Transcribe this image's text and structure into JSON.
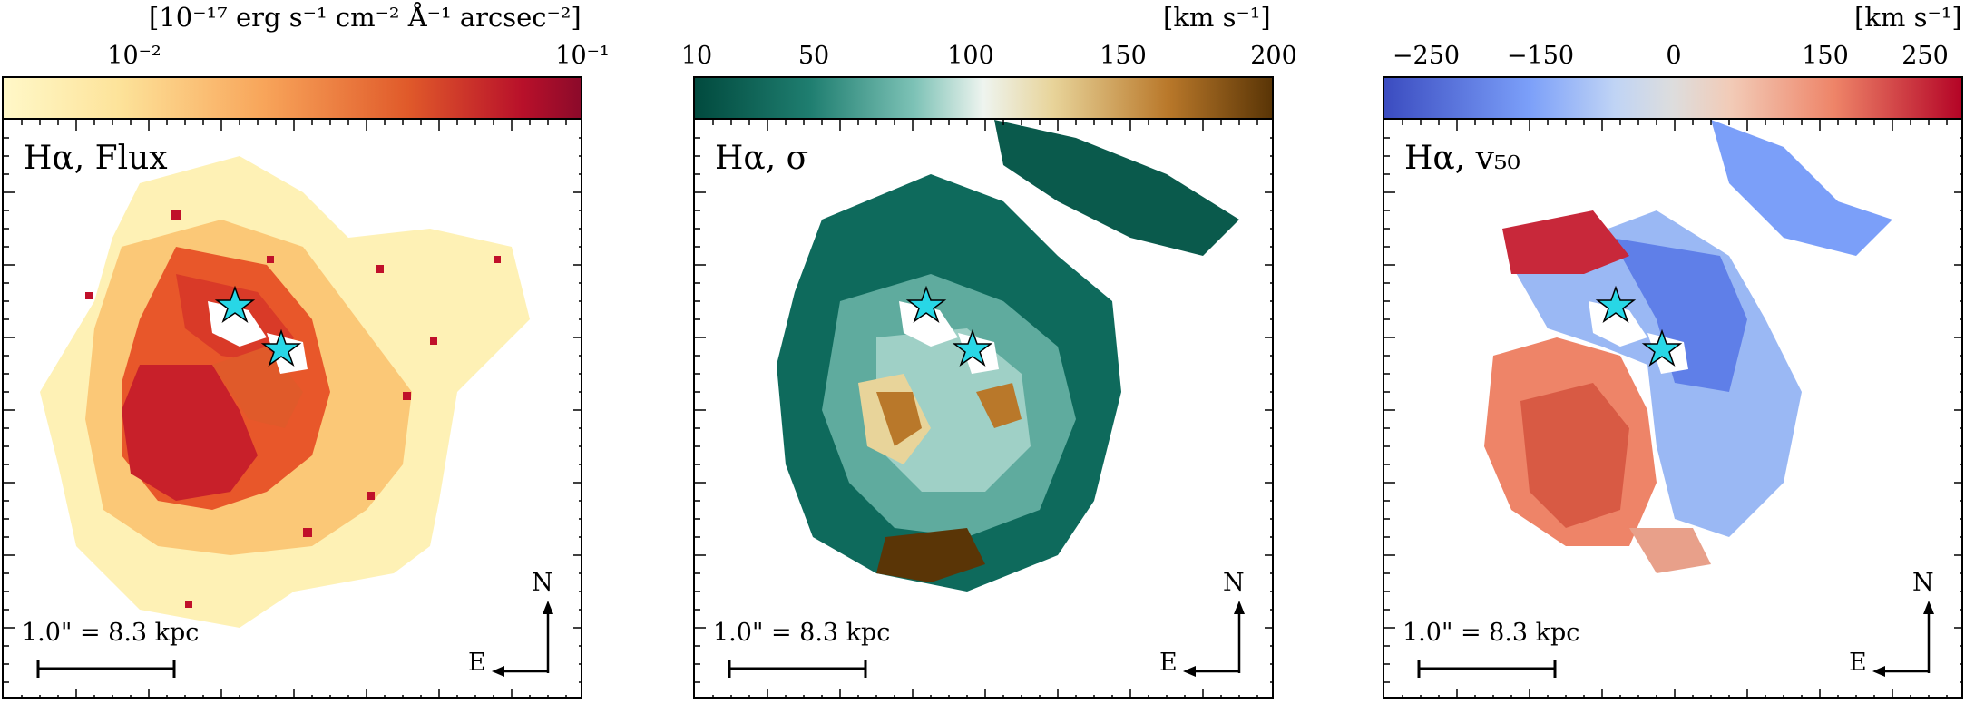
{
  "panels": [
    {
      "unit": "[10⁻¹⁷ erg s⁻¹ cm⁻² Å⁻¹ arcsec⁻²]",
      "ticks": [
        "10⁻²",
        "10⁻¹"
      ],
      "label": "Hα, Flux",
      "scalebar": "1.0\" = 8.3 kpc",
      "north": "N",
      "east": "E",
      "colormap": [
        "#fff8c8",
        "#fde39a",
        "#f8a55a",
        "#e05a2a",
        "#b8102a",
        "#8c0a2a"
      ]
    },
    {
      "unit": "[km s⁻¹]",
      "ticks": [
        "10",
        "50",
        "100",
        "150",
        "200"
      ],
      "label": "Hα, σ",
      "scalebar": "1.0\" = 8.3 kpc",
      "north": "N",
      "east": "E",
      "colormap": [
        "#014a3e",
        "#1f7e70",
        "#7dc2b6",
        "#eef4ef",
        "#e8d49a",
        "#b9782a",
        "#5a3506"
      ]
    },
    {
      "unit": "[km s⁻¹]",
      "ticks": [
        "−250",
        "−150",
        "0",
        "150",
        "250"
      ],
      "label": "Hα, v₅₀",
      "scalebar": "1.0\" = 8.3 kpc",
      "north": "N",
      "east": "E",
      "colormap": [
        "#3b4cc0",
        "#7b9ff9",
        "#c0d4f5",
        "#dddddd",
        "#f2cbb7",
        "#ee8468",
        "#b40426"
      ]
    }
  ],
  "colors": {
    "star": "#28d7e6"
  }
}
